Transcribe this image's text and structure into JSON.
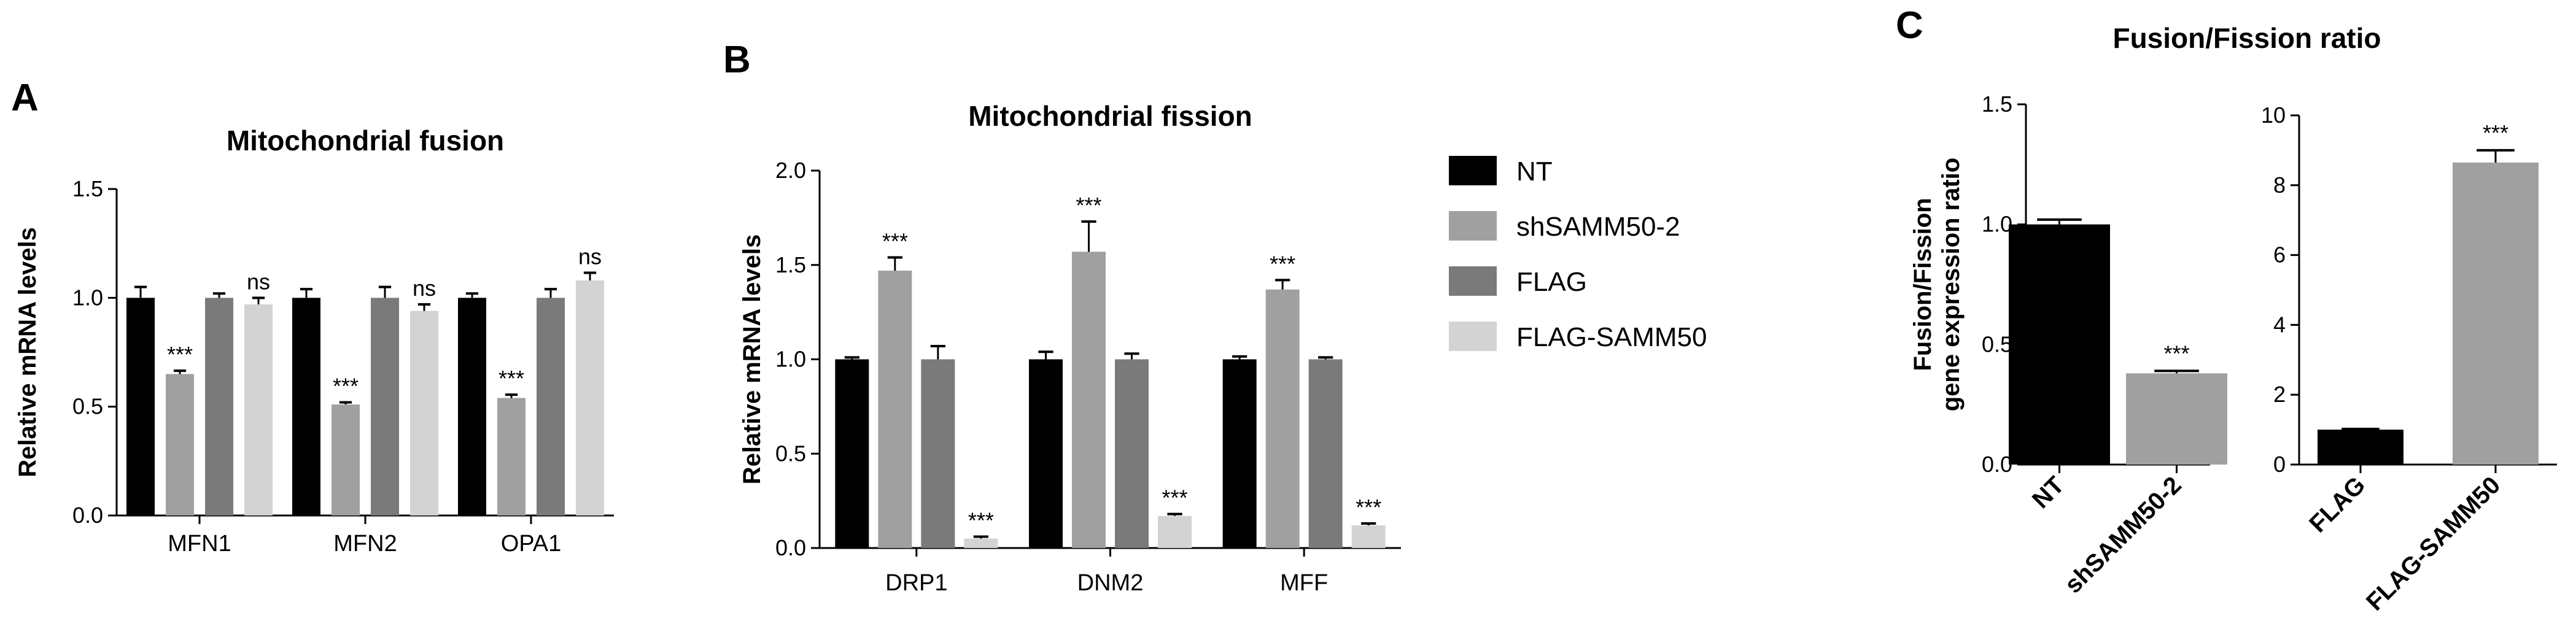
{
  "figure": {
    "panel_letters": [
      "A",
      "B",
      "C"
    ],
    "legend": [
      {
        "label": "NT",
        "color": "#000000"
      },
      {
        "label": "shSAMM50-2",
        "color": "#a0a0a0"
      },
      {
        "label": "FLAG",
        "color": "#7a7a7a"
      },
      {
        "label": "FLAG-SAMM50",
        "color": "#d3d3d3"
      }
    ]
  },
  "chart_data": [
    {
      "panel": "A",
      "type": "bar",
      "title": "Mitochondrial fusion",
      "ylabel": "Relative mRNA levels",
      "xlabel": "",
      "ylim": [
        0,
        1.5
      ],
      "yticks": [
        "0.0",
        "0.5",
        "1.0",
        "1.5"
      ],
      "categories": [
        "MFN1",
        "MFN2",
        "OPA1"
      ],
      "series": [
        {
          "name": "NT",
          "color": "#000000",
          "values": [
            1.0,
            1.0,
            1.0
          ],
          "errors": [
            0.05,
            0.04,
            0.02
          ],
          "labels": [
            "",
            "",
            ""
          ]
        },
        {
          "name": "shSAMM50-2",
          "color": "#a0a0a0",
          "values": [
            0.65,
            0.51,
            0.54
          ],
          "errors": [
            0.015,
            0.01,
            0.015
          ],
          "labels": [
            "***",
            "***",
            "***"
          ]
        },
        {
          "name": "FLAG",
          "color": "#7a7a7a",
          "values": [
            1.0,
            1.0,
            1.0
          ],
          "errors": [
            0.02,
            0.05,
            0.04
          ],
          "labels": [
            "",
            "",
            ""
          ]
        },
        {
          "name": "FLAG-SAMM50",
          "color": "#d3d3d3",
          "values": [
            0.97,
            0.94,
            1.08
          ],
          "errors": [
            0.03,
            0.03,
            0.035
          ],
          "labels": [
            "ns",
            "ns",
            "ns"
          ]
        }
      ]
    },
    {
      "panel": "B",
      "type": "bar",
      "title": "Mitochondrial fission",
      "ylabel": "Relative mRNA levels",
      "xlabel": "",
      "ylim": [
        0,
        2.0
      ],
      "yticks": [
        "0.0",
        "0.5",
        "1.0",
        "1.5",
        "2.0"
      ],
      "categories": [
        "DRP1",
        "DNM2",
        "MFF"
      ],
      "series": [
        {
          "name": "NT",
          "color": "#000000",
          "values": [
            1.0,
            1.0,
            1.0
          ],
          "errors": [
            0.01,
            0.04,
            0.015
          ],
          "labels": [
            "",
            "",
            ""
          ]
        },
        {
          "name": "shSAMM50-2",
          "color": "#a0a0a0",
          "values": [
            1.47,
            1.57,
            1.37
          ],
          "errors": [
            0.07,
            0.16,
            0.05
          ],
          "labels": [
            "***",
            "***",
            "***"
          ]
        },
        {
          "name": "FLAG",
          "color": "#7a7a7a",
          "values": [
            1.0,
            1.0,
            1.0
          ],
          "errors": [
            0.07,
            0.03,
            0.01
          ],
          "labels": [
            "",
            "",
            ""
          ]
        },
        {
          "name": "FLAG-SAMM50",
          "color": "#d3d3d3",
          "values": [
            0.05,
            0.17,
            0.12
          ],
          "errors": [
            0.01,
            0.01,
            0.01
          ],
          "labels": [
            "***",
            "***",
            "***"
          ]
        }
      ]
    },
    {
      "panel": "C",
      "type": "bar",
      "title": "Fusion/Fission ratio",
      "ylabel": "Fusion/Fission gene expression ratio",
      "ylabel_lines": [
        "Fusion/Fission",
        "gene expression ratio"
      ],
      "xlabel": "",
      "ylim": [
        0,
        1.5
      ],
      "yticks": [
        "0.0",
        "0.5",
        "1.0",
        "1.5"
      ],
      "categories": [
        "NT",
        "shSAMM50-2"
      ],
      "colors": [
        "#000000",
        "#a0a0a0"
      ],
      "values": [
        1.0,
        0.38
      ],
      "errors": [
        0.02,
        0.01
      ],
      "labels": [
        "",
        "***"
      ]
    },
    {
      "panel": "C",
      "type": "bar",
      "title": "",
      "ylabel": "",
      "xlabel": "",
      "ylim": [
        0,
        10
      ],
      "yticks": [
        "0",
        "2",
        "4",
        "6",
        "8",
        "10"
      ],
      "categories": [
        "FLAG",
        "FLAG-SAMM50"
      ],
      "colors": [
        "#000000",
        "#a0a0a0"
      ],
      "values": [
        1.0,
        8.65
      ],
      "errors": [
        0.02,
        0.35
      ],
      "labels": [
        "",
        "***"
      ]
    }
  ]
}
